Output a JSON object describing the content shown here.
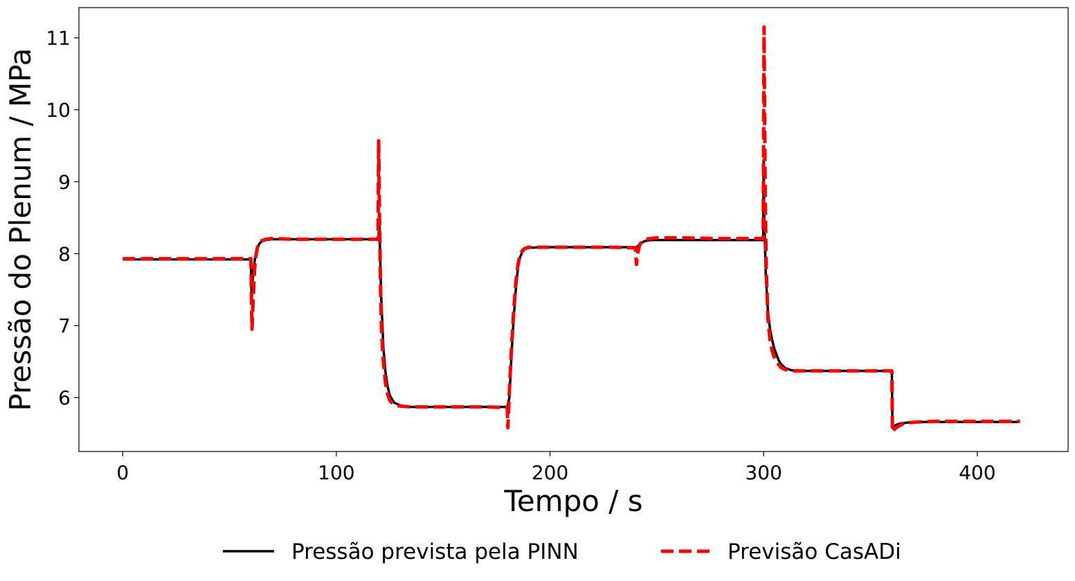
{
  "chart_data": {
    "type": "line",
    "title": "",
    "xlabel": "Tempo / s",
    "ylabel": "Pressão do Plenum / MPa",
    "xlim": [
      -20.5,
      442.5
    ],
    "ylim": [
      5.25,
      11.42
    ],
    "xticks": [
      0,
      100,
      200,
      300,
      400
    ],
    "yticks": [
      6,
      7,
      8,
      9,
      10,
      11
    ],
    "grid": false,
    "legend_position": "bottom-center",
    "series": [
      {
        "name": "Pressão prevista pela PINN",
        "color": "#000000",
        "style": "solid",
        "x": [
          0,
          60,
          60.3,
          61,
          62,
          63,
          64,
          65,
          67,
          70,
          80,
          100,
          119.8,
          120,
          120.3,
          121,
          122,
          123,
          124,
          125,
          127,
          130,
          133,
          136,
          140,
          150,
          170,
          180,
          181,
          182,
          183,
          184,
          185,
          186,
          187,
          188,
          190,
          195,
          210,
          230,
          240,
          241,
          242,
          243,
          244,
          245,
          247,
          250,
          260,
          280,
          299.8,
          300,
          300.3,
          301,
          302,
          303,
          304,
          305,
          306,
          307,
          308,
          310,
          313,
          320,
          340,
          360,
          360.3,
          361,
          362,
          364,
          367,
          370,
          380,
          400,
          420
        ],
        "y": [
          7.92,
          7.92,
          7.4,
          7.7,
          7.95,
          8.08,
          8.14,
          8.17,
          8.19,
          8.2,
          8.2,
          8.2,
          8.2,
          8.55,
          8.2,
          7.4,
          6.7,
          6.35,
          6.15,
          6.03,
          5.93,
          5.89,
          5.87,
          5.87,
          5.87,
          5.87,
          5.87,
          5.87,
          6.0,
          6.6,
          7.1,
          7.5,
          7.8,
          7.95,
          8.02,
          8.06,
          8.08,
          8.09,
          8.09,
          8.09,
          8.09,
          8.1,
          8.13,
          8.15,
          8.17,
          8.18,
          8.19,
          8.19,
          8.19,
          8.19,
          8.19,
          9.3,
          8.5,
          7.7,
          7.2,
          6.95,
          6.8,
          6.68,
          6.6,
          6.52,
          6.47,
          6.41,
          6.38,
          6.37,
          6.37,
          6.37,
          5.58,
          5.6,
          5.62,
          5.64,
          5.65,
          5.66,
          5.66,
          5.66,
          5.66
        ]
      },
      {
        "name": "Previsão CasADi",
        "color": "#ff0000",
        "style": "dashed",
        "x": [
          0,
          60,
          60.5,
          61,
          61.5,
          62,
          63,
          64,
          65,
          67,
          70,
          80,
          100,
          119.5,
          119.8,
          120.2,
          120.7,
          121.2,
          122,
          123,
          124,
          125,
          127,
          130,
          135,
          150,
          170,
          180,
          180.3,
          181,
          182,
          183,
          184,
          185,
          186,
          187,
          188,
          190,
          195,
          210,
          230,
          240,
          240.5,
          241,
          242,
          243,
          244,
          245,
          247,
          250,
          260,
          280,
          299.5,
          299.8,
          300.2,
          300.7,
          301.2,
          302,
          303,
          304,
          305,
          306,
          307,
          308,
          310,
          313,
          320,
          340,
          360,
          360.3,
          361,
          362,
          363,
          365,
          368,
          372,
          380,
          400,
          420
        ],
        "y": [
          7.93,
          7.93,
          6.95,
          7.3,
          7.65,
          7.9,
          8.08,
          8.15,
          8.18,
          8.2,
          8.21,
          8.2,
          8.2,
          8.2,
          9.57,
          8.5,
          7.5,
          6.9,
          6.5,
          6.2,
          6.05,
          5.96,
          5.9,
          5.88,
          5.87,
          5.87,
          5.87,
          5.86,
          5.58,
          6.1,
          6.7,
          7.2,
          7.6,
          7.85,
          7.98,
          8.04,
          8.07,
          8.09,
          8.09,
          8.09,
          8.09,
          8.08,
          7.85,
          8.0,
          8.12,
          8.17,
          8.19,
          8.2,
          8.21,
          8.22,
          8.22,
          8.21,
          8.21,
          8.21,
          11.15,
          9.0,
          7.8,
          7.1,
          6.8,
          6.65,
          6.56,
          6.5,
          6.46,
          6.42,
          6.39,
          6.37,
          6.37,
          6.37,
          6.37,
          5.52,
          5.55,
          5.58,
          5.6,
          5.63,
          5.65,
          5.66,
          5.67,
          5.67,
          5.67
        ]
      }
    ]
  }
}
